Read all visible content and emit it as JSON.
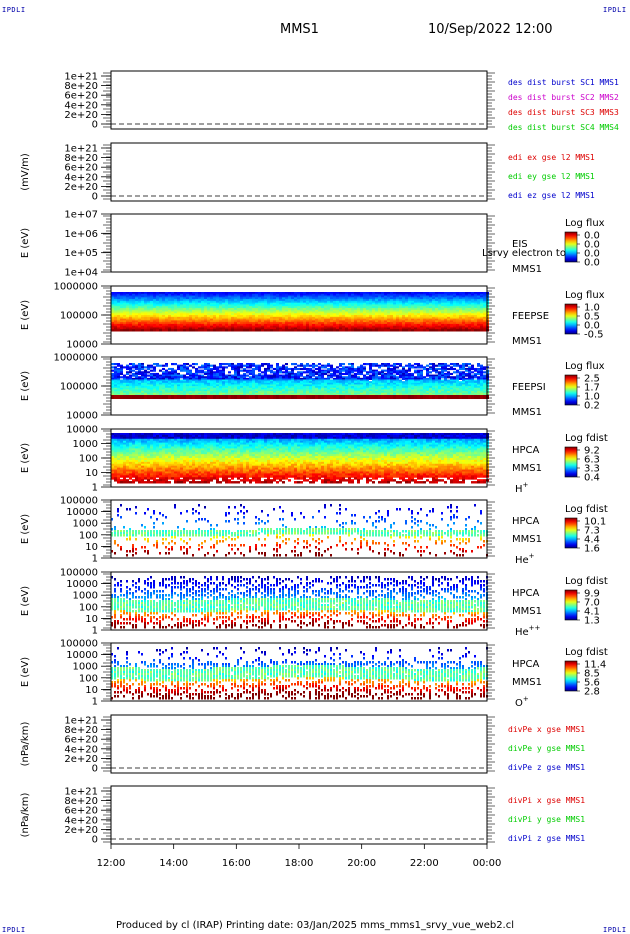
{
  "corners": {
    "tl": "IPDLI",
    "tr": "IPDLI",
    "bl": "IPDLI",
    "br": "IPDLI"
  },
  "header": {
    "title": "MMS1",
    "datetime": "10/Sep/2022 12:00"
  },
  "footer": {
    "text": "Produced by cl (IRAP)   Printing date: 03/Jan/2025   mms_mms1_srvy_vue_web2.cl"
  },
  "x_ticks": [
    "12:00",
    "14:00",
    "16:00",
    "18:00",
    "20:00",
    "22:00",
    "00:00"
  ],
  "stray_text": "Lsrvy electron to",
  "chart_data": [
    {
      "type": "line",
      "ylabel": "",
      "y_ticks": [
        "1e+21",
        "8e+20",
        "6e+20",
        "4e+20",
        "2e+20",
        "0"
      ],
      "legend": [
        {
          "label": "des dist burst SC1 MMS1",
          "color": "#0000cc"
        },
        {
          "label": "des dist burst SC2 MMS2",
          "color": "#cc00cc"
        },
        {
          "label": "des dist burst SC3 MMS3",
          "color": "#dd0000"
        },
        {
          "label": "des dist burst SC4 MMS4",
          "color": "#00cc00"
        }
      ]
    },
    {
      "type": "line",
      "ylabel": "(mV/m)",
      "y_ticks": [
        "1e+21",
        "8e+20",
        "6e+20",
        "4e+20",
        "2e+20",
        "0"
      ],
      "legend": [
        {
          "label": "edi ex gse l2 MMS1",
          "color": "#dd0000"
        },
        {
          "label": "edi ey gse l2 MMS1",
          "color": "#00cc00"
        },
        {
          "label": "edi ez gse l2 MMS1",
          "color": "#0000cc"
        }
      ]
    },
    {
      "type": "heatmap",
      "ylabel": "E (eV)",
      "y_ticks": [
        "1e+07",
        "1e+06",
        "1e+05",
        "1e+04"
      ],
      "instrument": [
        "EIS",
        "MMS1"
      ],
      "species": "",
      "colorbar": {
        "title": "Log flux",
        "ticks": [
          "0.0",
          "0.0",
          "0.0",
          "0.0"
        ]
      },
      "style": "empty"
    },
    {
      "type": "heatmap",
      "ylabel": "E (eV)",
      "y_ticks": [
        "1000000",
        "100000",
        "10000"
      ],
      "instrument": [
        "FEEPSE",
        "MMS1"
      ],
      "species": "",
      "colorbar": {
        "title": "Log flux",
        "ticks": [
          "1.0",
          "0.5",
          "0.0",
          "-0.5"
        ]
      },
      "style": "feepse"
    },
    {
      "type": "heatmap",
      "ylabel": "E (eV)",
      "y_ticks": [
        "1000000",
        "100000",
        "10000"
      ],
      "instrument": [
        "FEEPSI",
        "MMS1"
      ],
      "species": "",
      "colorbar": {
        "title": "Log flux",
        "ticks": [
          "2.5",
          "1.7",
          "1.0",
          "0.2"
        ]
      },
      "style": "feepsi"
    },
    {
      "type": "heatmap",
      "ylabel": "E (eV)",
      "y_ticks": [
        "10000",
        "1000",
        "100",
        "10",
        "1"
      ],
      "instrument": [
        "HPCA",
        "MMS1"
      ],
      "species": "H+",
      "colorbar": {
        "title": "Log fdist",
        "ticks": [
          "9.2",
          "6.3",
          "3.3",
          "0.4"
        ]
      },
      "style": "hplus"
    },
    {
      "type": "heatmap",
      "ylabel": "E (eV)",
      "y_ticks": [
        "100000",
        "10000",
        "1000",
        "100",
        "10",
        "1"
      ],
      "instrument": [
        "HPCA",
        "MMS1"
      ],
      "species": "He+",
      "colorbar": {
        "title": "Log fdist",
        "ticks": [
          "10.1",
          "7.3",
          "4.4",
          "1.6"
        ]
      },
      "style": "heplus"
    },
    {
      "type": "heatmap",
      "ylabel": "E (eV)",
      "y_ticks": [
        "100000",
        "10000",
        "1000",
        "100",
        "10",
        "1"
      ],
      "instrument": [
        "HPCA",
        "MMS1"
      ],
      "species": "He++",
      "colorbar": {
        "title": "Log fdist",
        "ticks": [
          "9.9",
          "7.0",
          "4.1",
          "1.3"
        ]
      },
      "style": "heplusplus"
    },
    {
      "type": "heatmap",
      "ylabel": "E (eV)",
      "y_ticks": [
        "100000",
        "10000",
        "1000",
        "100",
        "10",
        "1"
      ],
      "instrument": [
        "HPCA",
        "MMS1"
      ],
      "species": "O+",
      "colorbar": {
        "title": "Log fdist",
        "ticks": [
          "11.4",
          "8.5",
          "5.6",
          "2.8"
        ]
      },
      "style": "oplus"
    },
    {
      "type": "line",
      "ylabel": "(nPa/km)",
      "y_ticks": [
        "1e+21",
        "8e+20",
        "6e+20",
        "4e+20",
        "2e+20",
        "0"
      ],
      "legend": [
        {
          "label": "divPe x gse MMS1",
          "color": "#dd0000"
        },
        {
          "label": "divPe y gse MMS1",
          "color": "#00cc00"
        },
        {
          "label": "divPe z gse MMS1",
          "color": "#0000cc"
        }
      ]
    },
    {
      "type": "line",
      "ylabel": "(nPa/km)",
      "y_ticks": [
        "1e+21",
        "8e+20",
        "6e+20",
        "4e+20",
        "2e+20",
        "0"
      ],
      "legend": [
        {
          "label": "divPi x gse MMS1",
          "color": "#dd0000"
        },
        {
          "label": "divPi y gse MMS1",
          "color": "#00cc00"
        },
        {
          "label": "divPi z gse MMS1",
          "color": "#0000cc"
        }
      ]
    }
  ]
}
